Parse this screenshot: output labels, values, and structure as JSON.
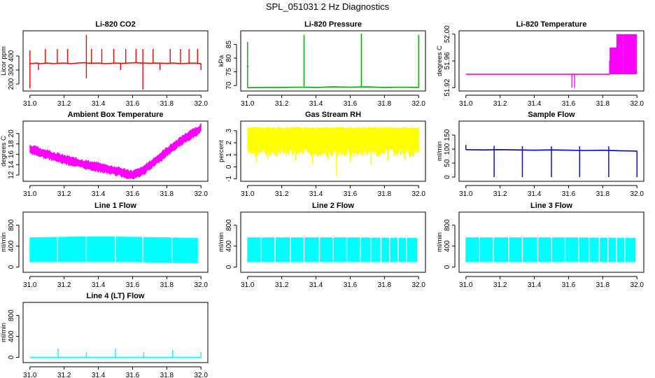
{
  "figure": {
    "title": "SPL_051031  2 Hz Diagnostics"
  },
  "chart_data": [
    {
      "type": "line",
      "title": "Li-820 CO2",
      "ylabel": "Licor ppm",
      "x_ticks": [
        "31.0",
        "31.2",
        "31.4",
        "31.6",
        "31.8",
        "32.0"
      ],
      "y_ticks": [
        "200",
        "300",
        "400"
      ],
      "xlim": [
        30.96,
        32.04
      ],
      "ylim": [
        150,
        580
      ],
      "color": "#ff0000",
      "series": [
        {
          "x": [
            31.0,
            31.04,
            31.06,
            31.1,
            31.14,
            31.16,
            31.2,
            31.24,
            31.28,
            31.32,
            31.33,
            31.36,
            31.4,
            31.44,
            31.5,
            31.54,
            31.58,
            31.62,
            31.66,
            31.67,
            31.7,
            31.74,
            31.8,
            31.84,
            31.88,
            31.92,
            31.96,
            32.0
          ],
          "y": [
            345,
            350,
            345,
            350,
            345,
            348,
            350,
            345,
            350,
            352,
            350,
            348,
            350,
            345,
            350,
            347,
            350,
            352,
            349,
            350,
            348,
            350,
            347,
            350,
            345,
            348,
            350,
            345
          ]
        }
      ],
      "spikes_up": [
        [
          31.0,
          440
        ],
        [
          31.09,
          450
        ],
        [
          31.16,
          450
        ],
        [
          31.22,
          450
        ],
        [
          31.33,
          550
        ],
        [
          31.36,
          450
        ],
        [
          31.42,
          450
        ],
        [
          31.49,
          450
        ],
        [
          31.56,
          450
        ],
        [
          31.62,
          450
        ],
        [
          31.66,
          450
        ],
        [
          31.72,
          450
        ],
        [
          31.82,
          450
        ],
        [
          31.88,
          450
        ],
        [
          31.93,
          450
        ],
        [
          31.98,
          450
        ]
      ],
      "spikes_down": [
        [
          31.0,
          170
        ],
        [
          31.05,
          300
        ],
        [
          31.33,
          240
        ],
        [
          31.53,
          300
        ],
        [
          31.66,
          160
        ],
        [
          31.76,
          300
        ],
        [
          32.0,
          300
        ]
      ]
    },
    {
      "type": "line",
      "title": "Li-820 Pressure",
      "ylabel": "kPa",
      "x_ticks": [
        "31.0",
        "31.2",
        "31.4",
        "31.6",
        "31.8",
        "32.0"
      ],
      "y_ticks": [
        "70",
        "75",
        "80",
        "85"
      ],
      "xlim": [
        30.96,
        32.04
      ],
      "ylim": [
        68,
        90
      ],
      "color": "#00b000",
      "series": [
        {
          "x": [
            31.0,
            31.1,
            31.2,
            31.3,
            31.4,
            31.5,
            31.6,
            31.7,
            31.8,
            31.9,
            32.0
          ],
          "y": [
            69.2,
            69.3,
            69.3,
            69.4,
            69.3,
            69.5,
            69.4,
            69.5,
            69.3,
            69.4,
            69.3
          ]
        }
      ],
      "spikes_up": [
        [
          31.0,
          86
        ],
        [
          31.33,
          88.5
        ],
        [
          31.665,
          89
        ],
        [
          32.0,
          88.5
        ]
      ],
      "markers": [
        [
          31.0,
          77
        ]
      ]
    },
    {
      "type": "line",
      "title": "Li-820 Temperature",
      "ylabel": "degrees C",
      "x_ticks": [
        "31.0",
        "31.2",
        "31.4",
        "31.6",
        "31.8",
        "32.0"
      ],
      "y_ticks": [
        "51.92",
        "51.96",
        "52.00"
      ],
      "xlim": [
        30.96,
        32.04
      ],
      "ylim": [
        51.915,
        52.005
      ],
      "color": "#ff00ff",
      "series": [
        {
          "x": [
            31.0,
            31.2,
            31.4,
            31.6,
            31.84
          ],
          "y": [
            51.94,
            51.94,
            51.94,
            51.94,
            51.94
          ]
        }
      ],
      "bands": [
        [
          31.84,
          31.92,
          51.94,
          51.98
        ],
        [
          31.88,
          31.92,
          51.975,
          52.0
        ],
        [
          31.92,
          32.0,
          51.94,
          52.0
        ]
      ],
      "spikes_down": [
        [
          31.62,
          51.92
        ],
        [
          31.635,
          51.92
        ]
      ],
      "spikes_up": [
        [
          31.84,
          51.96
        ]
      ]
    },
    {
      "type": "line",
      "title": "Ambient Box Temperature",
      "ylabel": "degrees C",
      "x_ticks": [
        "31.0",
        "31.2",
        "31.4",
        "31.6",
        "31.8",
        "32.0"
      ],
      "y_ticks": [
        "12",
        "14",
        "16",
        "18",
        "20"
      ],
      "xlim": [
        30.96,
        32.04
      ],
      "ylim": [
        10.8,
        22.4
      ],
      "color": "#ff00ff",
      "band": true,
      "series": [
        {
          "x": [
            31.0,
            31.1,
            31.2,
            31.3,
            31.4,
            31.5,
            31.55,
            31.6,
            31.65,
            31.7,
            31.8,
            31.9,
            32.0
          ],
          "y": [
            17.0,
            16.0,
            15.0,
            14.2,
            13.5,
            12.8,
            12.4,
            12.0,
            12.6,
            13.8,
            16.5,
            19.0,
            21.0
          ],
          "spread": 0.8
        }
      ]
    },
    {
      "type": "line",
      "title": "Gas Stream RH",
      "ylabel": "percent",
      "x_ticks": [
        "31.0",
        "31.2",
        "31.4",
        "31.6",
        "31.8",
        "32.0"
      ],
      "y_ticks": [
        "-1",
        "0",
        "1",
        "2",
        "3"
      ],
      "xlim": [
        30.96,
        32.04
      ],
      "ylim": [
        -1.2,
        3.8
      ],
      "color": "#ffff00",
      "band": true,
      "series": [
        {
          "x": [
            31.0,
            32.0
          ],
          "y": [
            3.3,
            3.3
          ],
          "lower": 1.6
        }
      ],
      "spikes_down": [
        [
          31.05,
          0.4
        ],
        [
          31.12,
          0.6
        ],
        [
          31.28,
          0.5
        ],
        [
          31.38,
          0.3
        ],
        [
          31.47,
          0.6
        ],
        [
          31.52,
          -0.8
        ],
        [
          31.6,
          0.4
        ],
        [
          31.72,
          0.2
        ],
        [
          31.82,
          0.5
        ],
        [
          31.92,
          0.6
        ]
      ]
    },
    {
      "type": "line",
      "title": "Sample Flow",
      "ylabel": "ml/min",
      "x_ticks": [
        "31.0",
        "31.2",
        "31.4",
        "31.6",
        "31.8",
        "32.0"
      ],
      "y_ticks": [
        "0",
        "50",
        "100",
        "150"
      ],
      "xlim": [
        30.96,
        32.04
      ],
      "ylim": [
        -15,
        200
      ],
      "color": "#0000cc",
      "series": [
        {
          "x": [
            31.0,
            31.1,
            31.2,
            31.3,
            31.4,
            31.5,
            31.6,
            31.7,
            31.8,
            31.9,
            32.0
          ],
          "y": [
            98,
            97,
            98,
            97,
            96,
            97,
            96,
            95,
            96,
            94,
            93
          ]
        }
      ],
      "spikes_down": [
        [
          31.165,
          0
        ],
        [
          31.33,
          0
        ],
        [
          31.5,
          0
        ],
        [
          31.665,
          0
        ],
        [
          31.835,
          0
        ],
        [
          32.0,
          0
        ]
      ],
      "spikes_up": [
        [
          31.0,
          115
        ],
        [
          31.165,
          112
        ],
        [
          31.33,
          110
        ],
        [
          31.5,
          110
        ],
        [
          31.665,
          110
        ],
        [
          31.835,
          110
        ]
      ]
    },
    {
      "type": "area",
      "title": "Line 1 Flow",
      "ylabel": "ml/min",
      "x_ticks": [
        "31.0",
        "31.2",
        "31.4",
        "31.6",
        "31.8",
        "32.0"
      ],
      "y_ticks": [
        "0",
        "400",
        "800"
      ],
      "xlim": [
        30.96,
        32.04
      ],
      "ylim": [
        -100,
        1050
      ],
      "color": "#00ffff",
      "series": [
        {
          "x": [
            31.0,
            31.2,
            31.4,
            31.6,
            31.8,
            31.98
          ],
          "upper": [
            560,
            570,
            580,
            570,
            560,
            550
          ],
          "lower": [
            100,
            100,
            100,
            100,
            90,
            80
          ]
        }
      ],
      "gaps": [
        31.16,
        31.33,
        31.5,
        31.66,
        31.83
      ]
    },
    {
      "type": "area",
      "title": "Line 2 Flow",
      "ylabel": "ml/min",
      "x_ticks": [
        "31.0",
        "31.2",
        "31.4",
        "31.6",
        "31.8",
        "32.0"
      ],
      "y_ticks": [
        "0",
        "400",
        "800"
      ],
      "xlim": [
        30.96,
        32.04
      ],
      "ylim": [
        -100,
        1050
      ],
      "color": "#00ffff",
      "series": [
        {
          "x": [
            31.0,
            31.2,
            31.4,
            31.6,
            31.8,
            31.99
          ],
          "upper": [
            560,
            560,
            560,
            560,
            555,
            550
          ],
          "lower": [
            100,
            100,
            100,
            100,
            100,
            100
          ]
        }
      ],
      "gaps": [
        31.08,
        31.16,
        31.25,
        31.33,
        31.42,
        31.5,
        31.58,
        31.66,
        31.72,
        31.78,
        31.83,
        31.88,
        31.93
      ]
    },
    {
      "type": "area",
      "title": "Line 3 Flow",
      "ylabel": "ml/min",
      "x_ticks": [
        "31.0",
        "31.2",
        "31.4",
        "31.6",
        "31.8",
        "32.0"
      ],
      "y_ticks": [
        "0",
        "400",
        "800"
      ],
      "xlim": [
        30.96,
        32.04
      ],
      "ylim": [
        -100,
        1050
      ],
      "color": "#00ffff",
      "series": [
        {
          "x": [
            31.0,
            31.2,
            31.4,
            31.6,
            31.8,
            31.99
          ],
          "upper": [
            560,
            560,
            560,
            560,
            555,
            550
          ],
          "lower": [
            100,
            100,
            100,
            100,
            100,
            100
          ]
        }
      ],
      "gaps": [
        31.08,
        31.16,
        31.25,
        31.33,
        31.42,
        31.5,
        31.58,
        31.66,
        31.72,
        31.78,
        31.83,
        31.88,
        31.93
      ]
    },
    {
      "type": "line",
      "title": "Line 4 (LT) Flow",
      "ylabel": "ml/min",
      "x_ticks": [
        "31.0",
        "31.2",
        "31.4",
        "31.6",
        "31.8",
        "32.0"
      ],
      "y_ticks": [
        "0",
        "400",
        "800"
      ],
      "xlim": [
        30.96,
        32.04
      ],
      "ylim": [
        -100,
        1050
      ],
      "color": "#00ffff",
      "series": [
        {
          "x": [
            31.0,
            31.5,
            32.0
          ],
          "y": [
            0,
            0,
            0
          ]
        }
      ],
      "spikes_up": [
        [
          31.165,
          170
        ],
        [
          31.33,
          100
        ],
        [
          31.5,
          170
        ],
        [
          31.665,
          100
        ],
        [
          31.835,
          140
        ],
        [
          32.0,
          100
        ]
      ]
    }
  ]
}
